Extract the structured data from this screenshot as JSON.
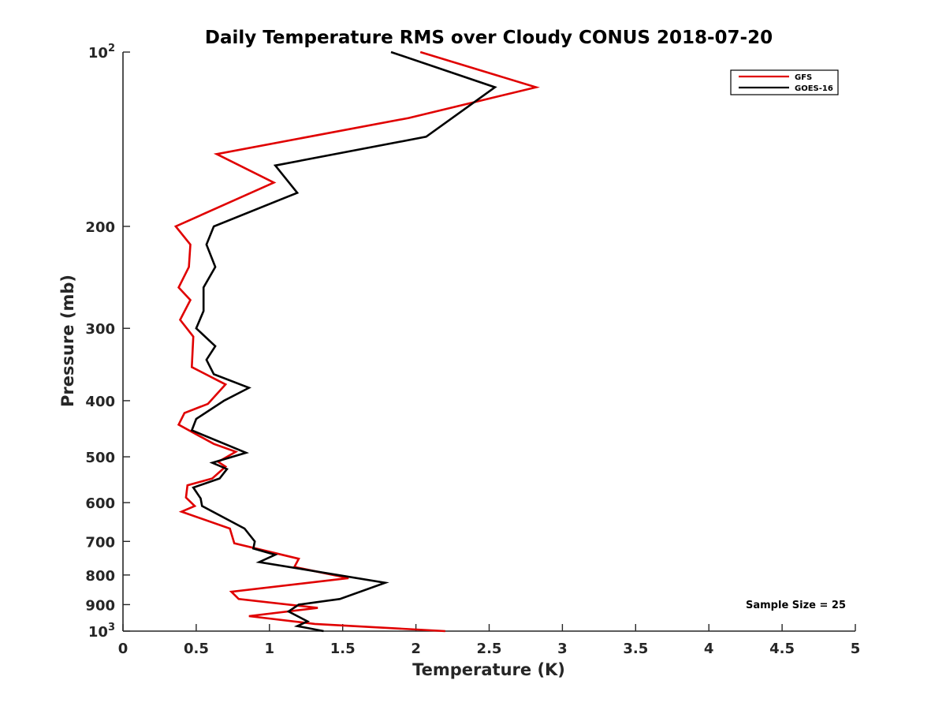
{
  "chart_data": {
    "type": "line",
    "title": "Daily Temperature RMS over Cloudy CONUS 2018-07-20",
    "xlabel": "Temperature (K)",
    "ylabel": "Pressure (mb)",
    "xlim": [
      0,
      5
    ],
    "ylim": [
      100,
      1000
    ],
    "y_scale": "log",
    "y_reversed": true,
    "x_ticks": [
      0,
      0.5,
      1,
      1.5,
      2,
      2.5,
      3,
      3.5,
      4,
      4.5,
      5
    ],
    "x_tick_labels": [
      "0",
      "0.5",
      "1",
      "1.5",
      "2",
      "2.5",
      "3",
      "3.5",
      "4",
      "4.5",
      "5"
    ],
    "y_ticks": [
      {
        "value": 100,
        "base": "10",
        "exp": "2"
      },
      {
        "value": 200,
        "label": "200"
      },
      {
        "value": 300,
        "label": "300"
      },
      {
        "value": 400,
        "label": "400"
      },
      {
        "value": 500,
        "label": "500"
      },
      {
        "value": 600,
        "label": "600"
      },
      {
        "value": 700,
        "label": "700"
      },
      {
        "value": 800,
        "label": "800"
      },
      {
        "value": 900,
        "label": "900"
      },
      {
        "value": 1000,
        "base": "10",
        "exp": "3"
      }
    ],
    "grid": false,
    "legend_position": "top-right",
    "annotation": "Sample Size = 25",
    "series": [
      {
        "name": "GFS",
        "color": "#e00000",
        "points": [
          [
            2.03,
            100
          ],
          [
            2.82,
            115
          ],
          [
            1.95,
            130
          ],
          [
            0.64,
            150
          ],
          [
            1.03,
            168
          ],
          [
            0.36,
            200
          ],
          [
            0.46,
            215
          ],
          [
            0.45,
            235
          ],
          [
            0.38,
            255
          ],
          [
            0.46,
            268
          ],
          [
            0.39,
            290
          ],
          [
            0.48,
            310
          ],
          [
            0.47,
            350
          ],
          [
            0.7,
            375
          ],
          [
            0.58,
            405
          ],
          [
            0.42,
            420
          ],
          [
            0.38,
            440
          ],
          [
            0.62,
            475
          ],
          [
            0.77,
            490
          ],
          [
            0.65,
            510
          ],
          [
            0.7,
            520
          ],
          [
            0.61,
            545
          ],
          [
            0.44,
            560
          ],
          [
            0.43,
            588
          ],
          [
            0.49,
            608
          ],
          [
            0.4,
            622
          ],
          [
            0.73,
            665
          ],
          [
            0.76,
            705
          ],
          [
            1.2,
            750
          ],
          [
            1.17,
            775
          ],
          [
            1.54,
            810
          ],
          [
            0.74,
            855
          ],
          [
            0.79,
            880
          ],
          [
            1.33,
            912
          ],
          [
            0.86,
            942
          ],
          [
            1.31,
            972
          ],
          [
            2.2,
            1000
          ]
        ]
      },
      {
        "name": "GOES-16",
        "color": "#000000",
        "points": [
          [
            1.83,
            100
          ],
          [
            2.54,
            115
          ],
          [
            2.07,
            140
          ],
          [
            1.04,
            157
          ],
          [
            1.19,
            175
          ],
          [
            0.62,
            200
          ],
          [
            0.57,
            215
          ],
          [
            0.63,
            235
          ],
          [
            0.55,
            255
          ],
          [
            0.55,
            280
          ],
          [
            0.5,
            300
          ],
          [
            0.63,
            322
          ],
          [
            0.57,
            340
          ],
          [
            0.62,
            360
          ],
          [
            0.86,
            380
          ],
          [
            0.69,
            400
          ],
          [
            0.5,
            430
          ],
          [
            0.47,
            450
          ],
          [
            0.72,
            478
          ],
          [
            0.84,
            492
          ],
          [
            0.61,
            512
          ],
          [
            0.71,
            525
          ],
          [
            0.66,
            545
          ],
          [
            0.48,
            565
          ],
          [
            0.53,
            590
          ],
          [
            0.54,
            608
          ],
          [
            0.83,
            665
          ],
          [
            0.9,
            700
          ],
          [
            0.89,
            720
          ],
          [
            1.04,
            738
          ],
          [
            0.93,
            760
          ],
          [
            1.79,
            825
          ],
          [
            1.48,
            880
          ],
          [
            1.2,
            900
          ],
          [
            1.13,
            925
          ],
          [
            1.26,
            962
          ],
          [
            1.19,
            980
          ],
          [
            1.37,
            1000
          ]
        ]
      }
    ]
  }
}
